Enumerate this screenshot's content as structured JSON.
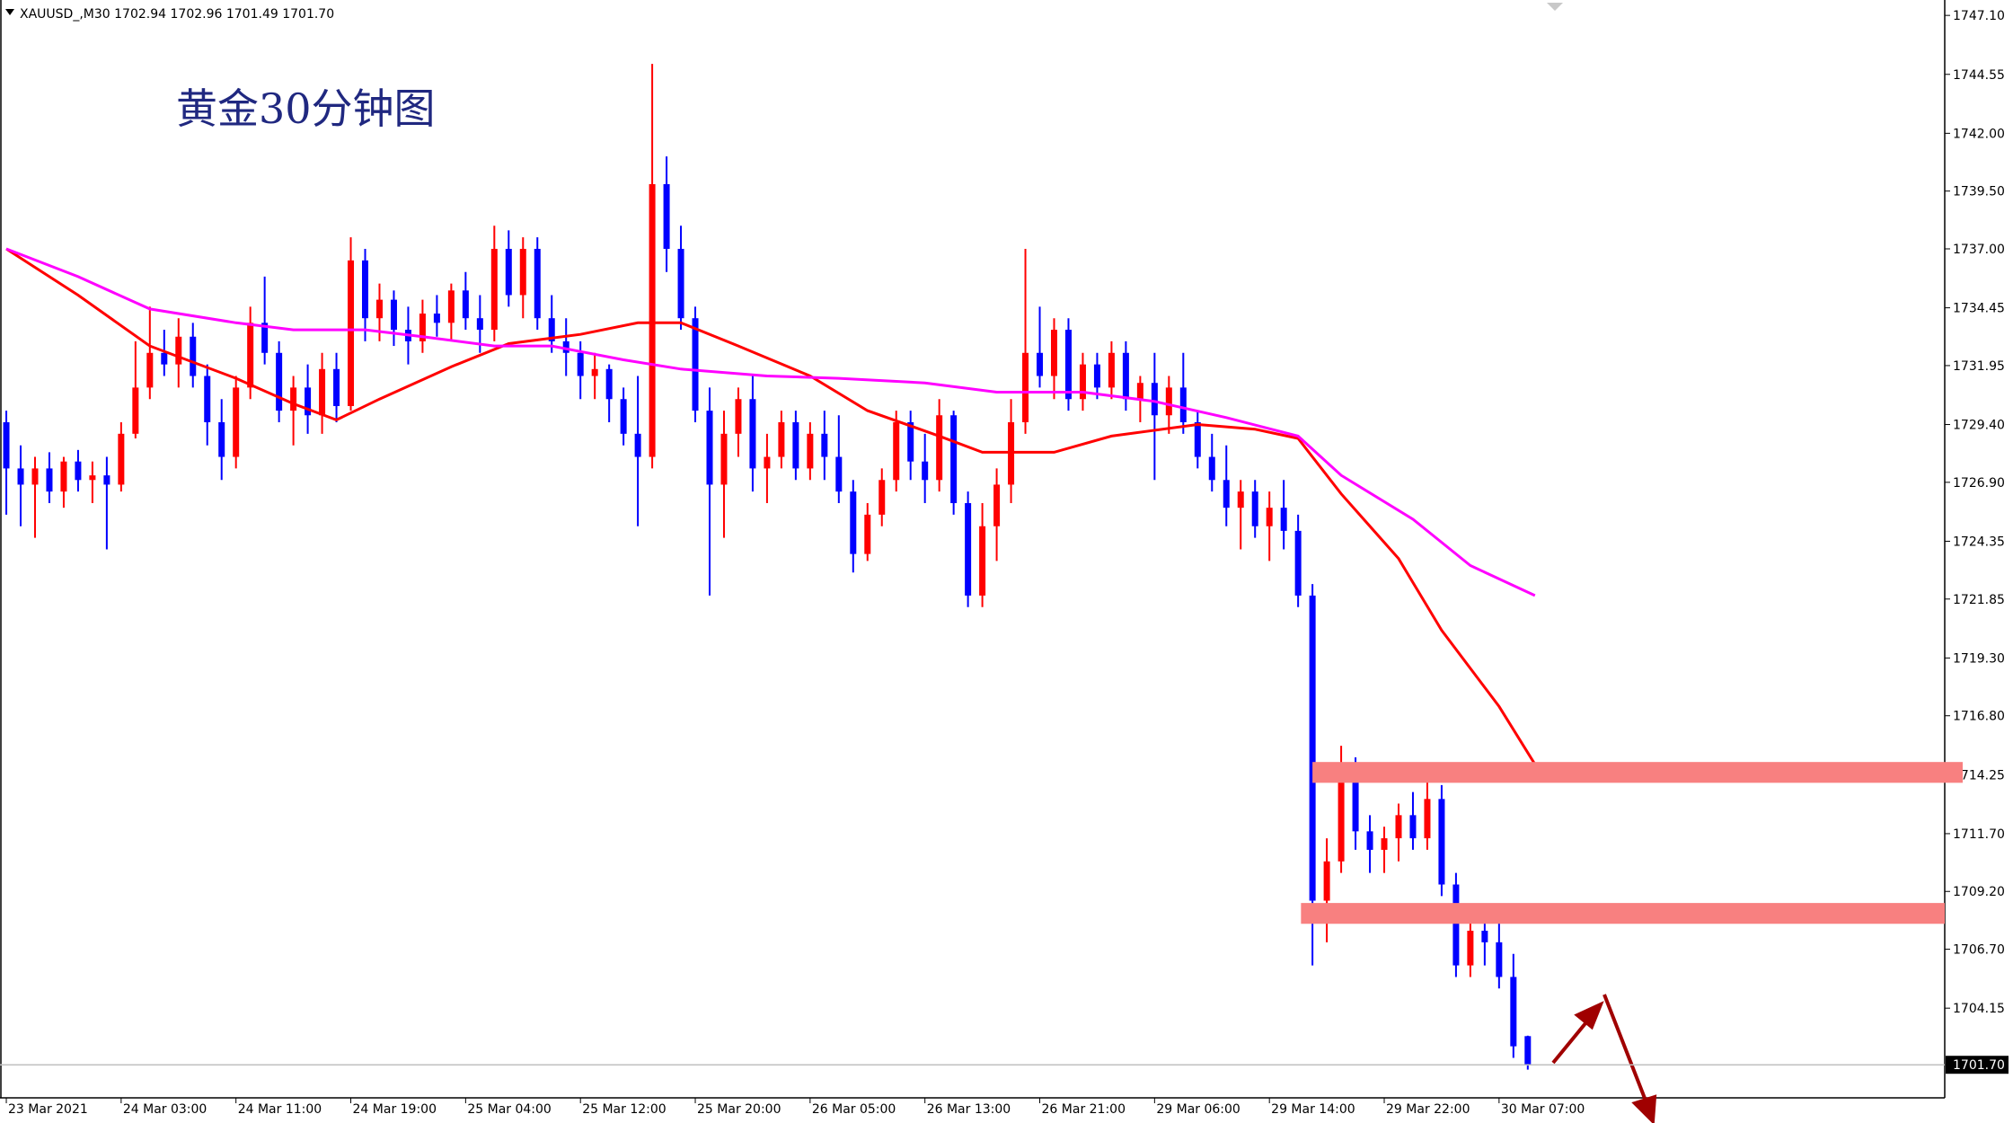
{
  "chart_data": {
    "type": "candlestick",
    "title": "黄金30分钟图",
    "symbol": "XAUUSD_,M30",
    "last_quote_labels": [
      "1702.94",
      "1702.96",
      "1701.49",
      "1701.70"
    ],
    "up_color": "#ff0000",
    "down_color": "#0000ff",
    "ohlc": [
      [
        1729.5,
        1730.0,
        1725.5,
        1727.5
      ],
      [
        1727.5,
        1728.5,
        1725.0,
        1726.8
      ],
      [
        1726.8,
        1728.0,
        1724.5,
        1727.5
      ],
      [
        1727.5,
        1728.2,
        1726.0,
        1726.5
      ],
      [
        1726.5,
        1728.0,
        1725.8,
        1727.8
      ],
      [
        1727.8,
        1728.3,
        1726.5,
        1727.0
      ],
      [
        1727.0,
        1727.8,
        1726.0,
        1727.2
      ],
      [
        1727.2,
        1728.0,
        1724.0,
        1726.8
      ],
      [
        1726.8,
        1729.5,
        1726.5,
        1729.0
      ],
      [
        1729.0,
        1733.0,
        1728.8,
        1731.0
      ],
      [
        1731.0,
        1734.5,
        1730.5,
        1732.5
      ],
      [
        1732.5,
        1733.5,
        1731.5,
        1732.0
      ],
      [
        1732.0,
        1734.0,
        1731.0,
        1733.2
      ],
      [
        1733.2,
        1733.8,
        1731.0,
        1731.5
      ],
      [
        1731.5,
        1732.0,
        1728.5,
        1729.5
      ],
      [
        1729.5,
        1730.5,
        1727.0,
        1728.0
      ],
      [
        1728.0,
        1731.5,
        1727.5,
        1731.0
      ],
      [
        1731.0,
        1734.5,
        1730.5,
        1733.8
      ],
      [
        1733.8,
        1735.8,
        1732.0,
        1732.5
      ],
      [
        1732.5,
        1733.0,
        1729.5,
        1730.0
      ],
      [
        1730.0,
        1731.5,
        1728.5,
        1731.0
      ],
      [
        1731.0,
        1732.0,
        1729.0,
        1729.8
      ],
      [
        1729.8,
        1732.5,
        1729.0,
        1731.8
      ],
      [
        1731.8,
        1732.5,
        1729.5,
        1730.2
      ],
      [
        1730.2,
        1737.5,
        1730.0,
        1736.5
      ],
      [
        1736.5,
        1737.0,
        1733.0,
        1734.0
      ],
      [
        1734.0,
        1735.5,
        1733.0,
        1734.8
      ],
      [
        1734.8,
        1735.2,
        1732.8,
        1733.5
      ],
      [
        1733.5,
        1734.5,
        1732.0,
        1733.0
      ],
      [
        1733.0,
        1734.8,
        1732.5,
        1734.2
      ],
      [
        1734.2,
        1735.0,
        1733.2,
        1733.8
      ],
      [
        1733.8,
        1735.5,
        1733.0,
        1735.2
      ],
      [
        1735.2,
        1736.0,
        1733.5,
        1734.0
      ],
      [
        1734.0,
        1735.0,
        1732.5,
        1733.5
      ],
      [
        1733.5,
        1738.0,
        1733.0,
        1737.0
      ],
      [
        1737.0,
        1737.8,
        1734.5,
        1735.0
      ],
      [
        1735.0,
        1737.5,
        1734.0,
        1737.0
      ],
      [
        1737.0,
        1737.5,
        1733.5,
        1734.0
      ],
      [
        1734.0,
        1735.0,
        1732.5,
        1733.0
      ],
      [
        1733.0,
        1734.0,
        1731.5,
        1732.5
      ],
      [
        1732.5,
        1733.0,
        1730.5,
        1731.5
      ],
      [
        1731.5,
        1732.5,
        1730.5,
        1731.8
      ],
      [
        1731.8,
        1732.0,
        1729.5,
        1730.5
      ],
      [
        1730.5,
        1731.0,
        1728.5,
        1729.0
      ],
      [
        1729.0,
        1731.5,
        1725.0,
        1728.0
      ],
      [
        1728.0,
        1745.0,
        1727.5,
        1739.8
      ],
      [
        1739.8,
        1741.0,
        1736.0,
        1737.0
      ],
      [
        1737.0,
        1738.0,
        1733.5,
        1734.0
      ],
      [
        1734.0,
        1734.5,
        1729.5,
        1730.0
      ],
      [
        1730.0,
        1731.0,
        1722.0,
        1726.8
      ],
      [
        1726.8,
        1730.0,
        1724.5,
        1729.0
      ],
      [
        1729.0,
        1731.0,
        1728.0,
        1730.5
      ],
      [
        1730.5,
        1731.5,
        1726.5,
        1727.5
      ],
      [
        1727.5,
        1729.0,
        1726.0,
        1728.0
      ],
      [
        1728.0,
        1730.0,
        1727.5,
        1729.5
      ],
      [
        1729.5,
        1730.0,
        1727.0,
        1727.5
      ],
      [
        1727.5,
        1729.5,
        1727.0,
        1729.0
      ],
      [
        1729.0,
        1730.0,
        1727.0,
        1728.0
      ],
      [
        1728.0,
        1729.8,
        1726.0,
        1726.5
      ],
      [
        1726.5,
        1727.0,
        1723.0,
        1723.8
      ],
      [
        1723.8,
        1726.0,
        1723.5,
        1725.5
      ],
      [
        1725.5,
        1727.5,
        1725.0,
        1727.0
      ],
      [
        1727.0,
        1730.0,
        1726.5,
        1729.5
      ],
      [
        1729.5,
        1730.0,
        1727.0,
        1727.8
      ],
      [
        1727.8,
        1729.0,
        1726.0,
        1727.0
      ],
      [
        1727.0,
        1730.5,
        1726.5,
        1729.8
      ],
      [
        1729.8,
        1730.0,
        1725.5,
        1726.0
      ],
      [
        1726.0,
        1726.5,
        1721.5,
        1722.0
      ],
      [
        1722.0,
        1726.0,
        1721.5,
        1725.0
      ],
      [
        1725.0,
        1727.5,
        1723.5,
        1726.8
      ],
      [
        1726.8,
        1730.5,
        1726.0,
        1729.5
      ],
      [
        1729.5,
        1737.0,
        1729.0,
        1732.5
      ],
      [
        1732.5,
        1734.5,
        1731.0,
        1731.5
      ],
      [
        1731.5,
        1734.0,
        1730.5,
        1733.5
      ],
      [
        1733.5,
        1734.0,
        1730.0,
        1730.5
      ],
      [
        1730.5,
        1732.5,
        1730.0,
        1732.0
      ],
      [
        1732.0,
        1732.5,
        1730.5,
        1731.0
      ],
      [
        1731.0,
        1733.0,
        1730.5,
        1732.5
      ],
      [
        1732.5,
        1733.0,
        1730.0,
        1730.5
      ],
      [
        1730.5,
        1731.5,
        1729.5,
        1731.2
      ],
      [
        1731.2,
        1732.5,
        1727.0,
        1729.8
      ],
      [
        1729.8,
        1731.5,
        1729.0,
        1731.0
      ],
      [
        1731.0,
        1732.5,
        1729.0,
        1729.5
      ],
      [
        1729.5,
        1730.0,
        1727.5,
        1728.0
      ],
      [
        1728.0,
        1729.0,
        1726.5,
        1727.0
      ],
      [
        1727.0,
        1728.5,
        1725.0,
        1725.8
      ],
      [
        1725.8,
        1727.0,
        1724.0,
        1726.5
      ],
      [
        1726.5,
        1727.0,
        1724.5,
        1725.0
      ],
      [
        1725.0,
        1726.5,
        1723.5,
        1725.8
      ],
      [
        1725.8,
        1727.0,
        1724.0,
        1724.8
      ],
      [
        1724.8,
        1725.5,
        1721.5,
        1722.0
      ],
      [
        1722.0,
        1722.5,
        1706.0,
        1708.8
      ],
      [
        1708.8,
        1711.5,
        1707.0,
        1710.5
      ],
      [
        1710.5,
        1715.5,
        1710.0,
        1714.0
      ],
      [
        1714.0,
        1715.0,
        1711.0,
        1711.8
      ],
      [
        1711.8,
        1712.5,
        1710.0,
        1711.0
      ],
      [
        1711.0,
        1712.0,
        1710.0,
        1711.5
      ],
      [
        1711.5,
        1713.0,
        1710.5,
        1712.5
      ],
      [
        1712.5,
        1713.5,
        1711.0,
        1711.5
      ],
      [
        1711.5,
        1714.5,
        1711.0,
        1713.2
      ],
      [
        1713.2,
        1713.8,
        1709.0,
        1709.5
      ],
      [
        1709.5,
        1710.0,
        1705.5,
        1706.0
      ],
      [
        1706.0,
        1708.0,
        1705.5,
        1707.5
      ],
      [
        1707.5,
        1708.5,
        1706.0,
        1707.0
      ],
      [
        1707.0,
        1708.5,
        1705.0,
        1705.5
      ],
      [
        1705.5,
        1706.5,
        1702.0,
        1702.5
      ],
      [
        1702.94,
        1702.96,
        1701.49,
        1701.7
      ]
    ],
    "lines": [
      {
        "color": "#ff0000",
        "x": [
          0,
          5,
          10,
          16,
          20,
          23,
          26,
          31,
          35,
          40,
          44,
          47,
          51,
          56,
          60,
          65,
          68,
          73,
          77,
          83,
          87,
          90,
          93,
          97,
          100,
          104,
          106.5
        ],
        "values": [
          1737.0,
          1735.0,
          1732.8,
          1731.4,
          1730.3,
          1729.6,
          1730.5,
          1731.9,
          1732.9,
          1733.3,
          1733.8,
          1733.8,
          1732.8,
          1731.5,
          1730.0,
          1728.9,
          1728.2,
          1728.2,
          1728.9,
          1729.4,
          1729.2,
          1728.8,
          1726.4,
          1723.6,
          1720.5,
          1717.2,
          1714.7
        ]
      },
      {
        "color": "#ff00ff",
        "x": [
          0,
          5,
          10,
          16,
          20,
          25,
          29,
          34,
          38,
          43,
          47,
          53,
          58,
          64,
          69,
          75,
          80,
          85,
          90,
          93,
          98,
          102,
          106.5
        ],
        "values": [
          1737.0,
          1735.8,
          1734.4,
          1733.8,
          1733.5,
          1733.5,
          1733.2,
          1732.8,
          1732.8,
          1732.2,
          1731.8,
          1731.5,
          1731.4,
          1731.2,
          1730.8,
          1730.8,
          1730.4,
          1729.7,
          1728.9,
          1727.2,
          1725.3,
          1723.3,
          1722.0
        ]
      }
    ],
    "zones": [
      {
        "start": 91,
        "low": 1713.9,
        "high": 1714.8,
        "color": "#f88080"
      },
      {
        "start": 90.2,
        "low": 1707.8,
        "high": 1708.7,
        "color": "#f88080"
      }
    ],
    "xlim": [
      -0.44,
      135.05
    ],
    "xticks": [
      {
        "value": 0,
        "label": "23 Mar 2021"
      },
      {
        "value": 8,
        "label": "24 Mar 03:00"
      },
      {
        "value": 16,
        "label": "24 Mar 11:00"
      },
      {
        "value": 24,
        "label": "24 Mar 19:00"
      },
      {
        "value": 32,
        "label": "25 Mar 04:00"
      },
      {
        "value": 40,
        "label": "25 Mar 12:00"
      },
      {
        "value": 48,
        "label": "25 Mar 20:00"
      },
      {
        "value": 56,
        "label": "26 Mar 05:00"
      },
      {
        "value": 64,
        "label": "26 Mar 13:00"
      },
      {
        "value": 72,
        "label": "26 Mar 21:00"
      },
      {
        "value": 80,
        "label": "29 Mar 06:00"
      },
      {
        "value": 88,
        "label": "29 Mar 14:00"
      },
      {
        "value": 96,
        "label": "29 Mar 22:00"
      },
      {
        "value": 104,
        "label": "30 Mar 07:00"
      }
    ],
    "ylim": [
      1700.27,
      1747.65
    ],
    "yticks": [
      {
        "value": 1747.1,
        "label": "1747.10"
      },
      1744.55,
      {
        "value": 1742,
        "label": "1742.00"
      },
      {
        "value": 1739.5,
        "label": "1739.50"
      },
      {
        "value": 1737,
        "label": "1737.00"
      },
      1734.45,
      1731.95,
      {
        "value": 1729.4,
        "label": "1729.40"
      },
      {
        "value": 1726.9,
        "label": "1726.90"
      },
      1724.35,
      1721.85,
      {
        "value": 1719.3,
        "label": "1719.30"
      },
      {
        "value": 1716.8,
        "label": "1716.80"
      },
      1714.25,
      {
        "value": 1711.7,
        "label": "1711.70"
      },
      {
        "value": 1709.2,
        "label": "1709.20"
      },
      {
        "value": 1706.7,
        "label": "1706.70"
      },
      1704.15
    ]
  }
}
